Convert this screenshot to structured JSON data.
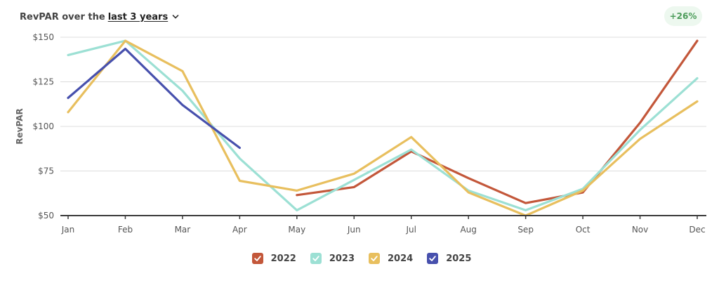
{
  "header": {
    "prefix": "RevPAR over the",
    "range": "last 3 years"
  },
  "badge": "+26%",
  "colors": {
    "2022": "#c3573a",
    "2023": "#9ce0d4",
    "2024": "#e8bf5e",
    "2025": "#4750ad"
  },
  "chart_data": {
    "type": "line",
    "ylabel": "RevPAR",
    "xlabel": "",
    "ylim": [
      50,
      150
    ],
    "y_ticks": [
      50,
      75,
      100,
      125,
      150
    ],
    "y_tick_labels": [
      "$50",
      "$75",
      "$100",
      "$125",
      "$150"
    ],
    "grid": true,
    "legend_placement": "bottom-center",
    "categories": [
      "Jan",
      "Feb",
      "Mar",
      "Apr",
      "May",
      "Jun",
      "Jul",
      "Aug",
      "Sep",
      "Oct",
      "Nov",
      "Dec"
    ],
    "series": [
      {
        "name": "2022",
        "values": [
          null,
          null,
          null,
          null,
          61.5,
          66,
          86,
          71,
          57,
          63,
          102,
          148
        ]
      },
      {
        "name": "2023",
        "values": [
          140,
          148,
          120,
          82,
          53,
          70,
          87,
          64,
          53,
          65,
          98,
          127
        ]
      },
      {
        "name": "2024",
        "values": [
          108,
          148,
          131,
          69.5,
          64,
          73.5,
          94,
          63,
          50,
          64,
          93,
          114
        ]
      },
      {
        "name": "2025",
        "values": [
          116,
          143.5,
          112,
          88,
          null,
          null,
          null,
          null,
          null,
          null,
          null,
          null
        ]
      }
    ]
  }
}
